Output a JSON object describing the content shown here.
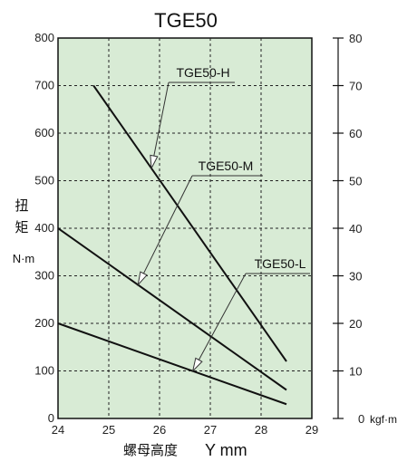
{
  "chart_data": {
    "type": "line",
    "title": "TGE50",
    "ylabel_chars": [
      "扭",
      "矩"
    ],
    "ylabel_unit": "N·m",
    "xlabel_cjk": "螺母高度",
    "xlabel_latin": "Y mm",
    "secondary_axis_unit": "kgf·m",
    "xlim": [
      24,
      29
    ],
    "ylim": [
      0,
      800
    ],
    "y2lim": [
      0,
      80
    ],
    "x_ticks": [
      24,
      25,
      26,
      27,
      28,
      29
    ],
    "y_ticks": [
      0,
      100,
      200,
      300,
      400,
      500,
      600,
      700,
      800
    ],
    "y2_ticks": [
      0,
      10,
      20,
      30,
      40,
      50,
      60,
      70,
      80
    ],
    "grid": true,
    "background_color": "#d8ebd5",
    "line_color": "#111111",
    "series": [
      {
        "name": "TGE50-H",
        "x": [
          24.7,
          28.5
        ],
        "y": [
          700,
          120
        ]
      },
      {
        "name": "TGE50-M",
        "x": [
          24.0,
          28.5
        ],
        "y": [
          400,
          60
        ]
      },
      {
        "name": "TGE50-L",
        "x": [
          24.0,
          28.5
        ],
        "y": [
          200,
          30
        ]
      }
    ]
  }
}
